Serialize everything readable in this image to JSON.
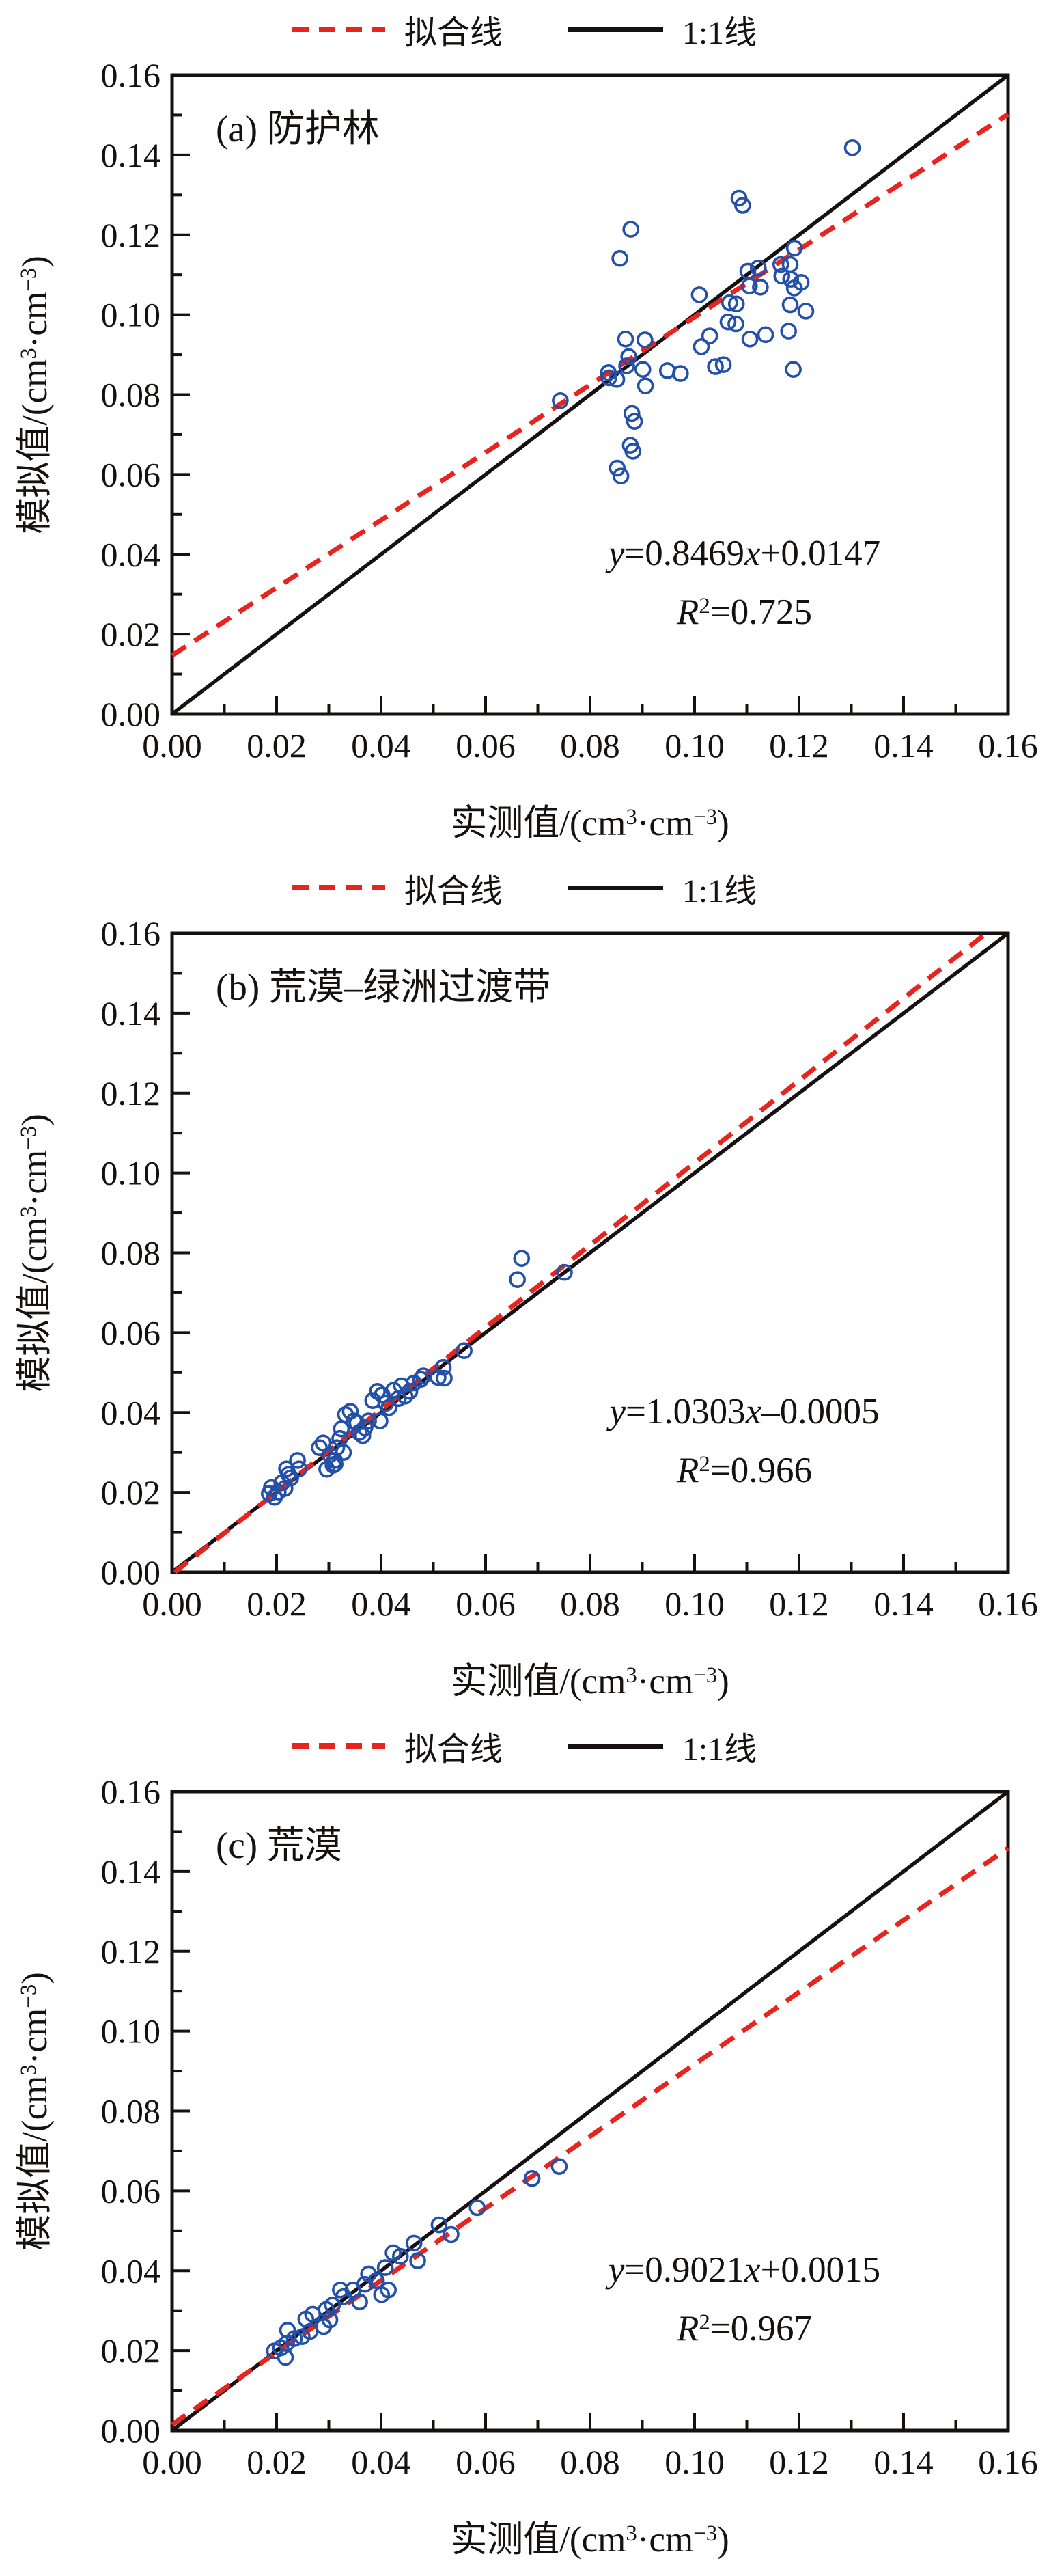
{
  "colors": {
    "point": "#2350a8",
    "fit": "#e8241f",
    "one_to_one": "#171010",
    "axis": "#171010",
    "text": "#171010"
  },
  "legend": {
    "fit_label": "拟合线",
    "one_to_one_label": "1:1线"
  },
  "axes": {
    "x_name": "实测值",
    "y_name": "模拟值",
    "unit_open": "/(cm",
    "sup_3": "3",
    "unit_mid": "·cm",
    "sup_m3": "−3",
    "unit_close": ")",
    "tick_labels": [
      "0.00",
      "0.02",
      "0.04",
      "0.06",
      "0.08",
      "0.10",
      "0.12",
      "0.14",
      "0.16"
    ]
  },
  "chart_data": [
    {
      "type": "scatter",
      "panel_label": "(a) 防护林",
      "xlabel": "实测值/(cm³·cm⁻³)",
      "ylabel": "模拟值/(cm³·cm⁻³)",
      "xlim": [
        0,
        0.16
      ],
      "ylim": [
        0,
        0.16
      ],
      "tick_step": 0.02,
      "minor_step": 0.01,
      "legend": [
        "拟合线",
        "1:1线"
      ],
      "fit": {
        "slope": 0.8469,
        "intercept": 0.0147,
        "r2": 0.725
      },
      "eq": {
        "y": "y",
        "a": "=0.8469",
        "x": "x",
        "b": "+0.0147",
        "R": "R",
        "sup": "2",
        "val": "=0.725"
      },
      "points": [
        [
          0.1302,
          0.1418
        ],
        [
          0.1085,
          0.1292
        ],
        [
          0.1092,
          0.1274
        ],
        [
          0.0878,
          0.1214
        ],
        [
          0.0857,
          0.1141
        ],
        [
          0.1191,
          0.1167
        ],
        [
          0.1102,
          0.1109
        ],
        [
          0.1122,
          0.1117
        ],
        [
          0.1165,
          0.1126
        ],
        [
          0.1183,
          0.1126
        ],
        [
          0.1009,
          0.105
        ],
        [
          0.1105,
          0.1072
        ],
        [
          0.1126,
          0.1069
        ],
        [
          0.1167,
          0.1097
        ],
        [
          0.1184,
          0.1089
        ],
        [
          0.1204,
          0.1081
        ],
        [
          0.1191,
          0.1067
        ],
        [
          0.108,
          0.1027
        ],
        [
          0.1067,
          0.103
        ],
        [
          0.1183,
          0.1025
        ],
        [
          0.1213,
          0.1009
        ],
        [
          0.1064,
          0.0982
        ],
        [
          0.1079,
          0.0977
        ],
        [
          0.1029,
          0.0947
        ],
        [
          0.1106,
          0.0939
        ],
        [
          0.1136,
          0.095
        ],
        [
          0.118,
          0.0959
        ],
        [
          0.1013,
          0.092
        ],
        [
          0.1055,
          0.0875
        ],
        [
          0.104,
          0.087
        ],
        [
          0.0835,
          0.0855
        ],
        [
          0.0901,
          0.0863
        ],
        [
          0.0948,
          0.086
        ],
        [
          0.0973,
          0.0853
        ],
        [
          0.1189,
          0.0863
        ],
        [
          0.0868,
          0.0939
        ],
        [
          0.0905,
          0.0937
        ],
        [
          0.0874,
          0.0895
        ],
        [
          0.087,
          0.0872
        ],
        [
          0.0851,
          0.0838
        ],
        [
          0.0836,
          0.0842
        ],
        [
          0.0906,
          0.0822
        ],
        [
          0.088,
          0.0753
        ],
        [
          0.0885,
          0.0733
        ],
        [
          0.0877,
          0.0673
        ],
        [
          0.0882,
          0.0658
        ],
        [
          0.0852,
          0.0616
        ],
        [
          0.0859,
          0.0596
        ],
        [
          0.0743,
          0.0785
        ]
      ]
    },
    {
      "type": "scatter",
      "panel_label": "(b) 荒漠–绿洲过渡带",
      "xlabel": "实测值/(cm³·cm⁻³)",
      "ylabel": "模拟值/(cm³·cm⁻³)",
      "xlim": [
        0,
        0.16
      ],
      "ylim": [
        0,
        0.16
      ],
      "tick_step": 0.02,
      "minor_step": 0.01,
      "legend": [
        "拟合线",
        "1:1线"
      ],
      "fit": {
        "slope": 1.0303,
        "intercept": -0.0005,
        "r2": 0.966
      },
      "eq": {
        "y": "y",
        "a": "=1.0303",
        "x": "x",
        "b": "–0.0005",
        "R": "R",
        "sup": "2",
        "val": "=0.966"
      },
      "points": [
        [
          0.019,
          0.0212
        ],
        [
          0.0203,
          0.0201
        ],
        [
          0.0186,
          0.0197
        ],
        [
          0.021,
          0.0224
        ],
        [
          0.0219,
          0.0259
        ],
        [
          0.0227,
          0.0236
        ],
        [
          0.0216,
          0.021
        ],
        [
          0.024,
          0.028
        ],
        [
          0.0243,
          0.0259
        ],
        [
          0.0223,
          0.0245
        ],
        [
          0.0196,
          0.0188
        ],
        [
          0.0282,
          0.0312
        ],
        [
          0.0289,
          0.0324
        ],
        [
          0.0302,
          0.0294
        ],
        [
          0.0311,
          0.028
        ],
        [
          0.0315,
          0.0312
        ],
        [
          0.0308,
          0.0268
        ],
        [
          0.0296,
          0.0258
        ],
        [
          0.0324,
          0.0359
        ],
        [
          0.0332,
          0.0395
        ],
        [
          0.0341,
          0.0403
        ],
        [
          0.0348,
          0.0379
        ],
        [
          0.0354,
          0.0374
        ],
        [
          0.0358,
          0.035
        ],
        [
          0.0365,
          0.0342
        ],
        [
          0.0369,
          0.0362
        ],
        [
          0.0376,
          0.0379
        ],
        [
          0.0321,
          0.0335
        ],
        [
          0.0328,
          0.03
        ],
        [
          0.0312,
          0.0271
        ],
        [
          0.0384,
          0.043
        ],
        [
          0.0393,
          0.0453
        ],
        [
          0.0402,
          0.0444
        ],
        [
          0.0409,
          0.0423
        ],
        [
          0.0415,
          0.0412
        ],
        [
          0.0424,
          0.0456
        ],
        [
          0.0433,
          0.0435
        ],
        [
          0.0439,
          0.0467
        ],
        [
          0.0455,
          0.0453
        ],
        [
          0.0463,
          0.0474
        ],
        [
          0.0476,
          0.0483
        ],
        [
          0.0398,
          0.0379
        ],
        [
          0.0446,
          0.0441
        ],
        [
          0.0481,
          0.0492
        ],
        [
          0.0509,
          0.0488
        ],
        [
          0.0519,
          0.0513
        ],
        [
          0.0521,
          0.0486
        ],
        [
          0.0559,
          0.0555
        ],
        [
          0.0661,
          0.0733
        ],
        [
          0.0669,
          0.0786
        ],
        [
          0.0751,
          0.0751
        ]
      ]
    },
    {
      "type": "scatter",
      "panel_label": "(c) 荒漠",
      "xlabel": "实测值/(cm³·cm⁻³)",
      "ylabel": "模拟值/(cm³·cm⁻³)",
      "xlim": [
        0,
        0.16
      ],
      "ylim": [
        0,
        0.16
      ],
      "tick_step": 0.02,
      "minor_step": 0.01,
      "legend": [
        "拟合线",
        "1:1线"
      ],
      "fit": {
        "slope": 0.9021,
        "intercept": 0.0015,
        "r2": 0.967
      },
      "eq": {
        "y": "y",
        "a": "=0.9021",
        "x": "x",
        "b": "+0.0015",
        "R": "R",
        "sup": "2",
        "val": "=0.967"
      },
      "points": [
        [
          0.0741,
          0.0661
        ],
        [
          0.0689,
          0.0631
        ],
        [
          0.0584,
          0.0558
        ],
        [
          0.0534,
          0.0491
        ],
        [
          0.0511,
          0.0515
        ],
        [
          0.047,
          0.0425
        ],
        [
          0.0463,
          0.0469
        ],
        [
          0.0437,
          0.0436
        ],
        [
          0.0423,
          0.0445
        ],
        [
          0.0408,
          0.0408
        ],
        [
          0.0401,
          0.034
        ],
        [
          0.0414,
          0.0352
        ],
        [
          0.0391,
          0.0375
        ],
        [
          0.0376,
          0.0392
        ],
        [
          0.0369,
          0.0366
        ],
        [
          0.0359,
          0.0322
        ],
        [
          0.0346,
          0.0352
        ],
        [
          0.0328,
          0.0335
        ],
        [
          0.0322,
          0.0352
        ],
        [
          0.0307,
          0.0314
        ],
        [
          0.0295,
          0.0303
        ],
        [
          0.0302,
          0.0277
        ],
        [
          0.029,
          0.026
        ],
        [
          0.0269,
          0.0291
        ],
        [
          0.0256,
          0.0279
        ],
        [
          0.0264,
          0.0248
        ],
        [
          0.0249,
          0.0235
        ],
        [
          0.0234,
          0.023
        ],
        [
          0.0221,
          0.0251
        ],
        [
          0.0219,
          0.0218
        ],
        [
          0.0208,
          0.0207
        ],
        [
          0.0217,
          0.0183
        ],
        [
          0.0196,
          0.0199
        ]
      ]
    }
  ]
}
